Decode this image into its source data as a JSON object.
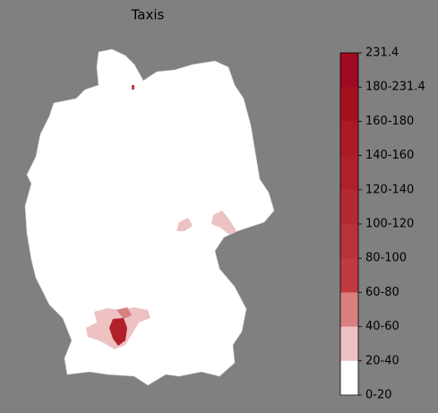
{
  "title": "Taxis",
  "colorbar": {
    "labels": [
      "231.4",
      "180-231.4",
      "160-180",
      "140-160",
      "120-140",
      "100-120",
      "80-100",
      "60-80",
      "40-60",
      "20-40",
      "0-20"
    ],
    "colors": [
      "#9e0b21",
      "#a5121f",
      "#ab1a26",
      "#b0202b",
      "#b52932",
      "#ba3139",
      "#c03a3f",
      "#d88080",
      "#eec2c2",
      "#ffffff"
    ]
  }
}
